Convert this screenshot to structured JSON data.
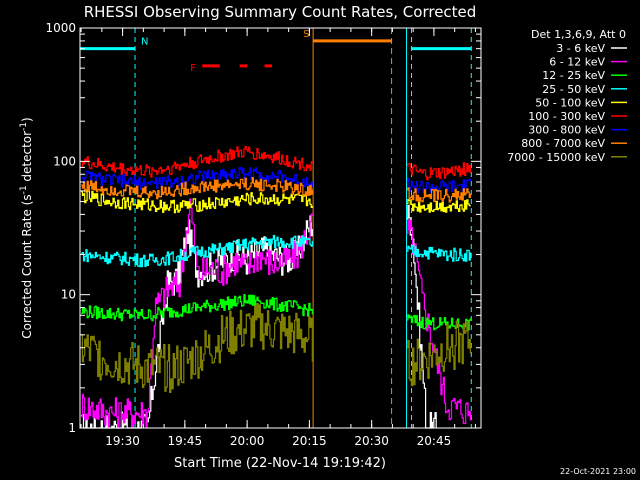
{
  "chart_data": {
    "type": "line",
    "title": "RHESSI Observing Summary Count Rates, Corrected",
    "xlabel": "Start Time (22-Nov-14 19:19:42)",
    "ylabel": "Corrected Count Rate (s⁻¹ detector⁻¹)",
    "ylabel_main": "Corrected Count Rate (s",
    "ylabel_exp1": "-1",
    "ylabel_mid": " detector",
    "ylabel_exp2": "-1",
    "ylabel_close": ")",
    "yscale": "log",
    "xlim": [
      19.329,
      20.939
    ],
    "ylim": [
      1,
      1000
    ],
    "x_ticks": [
      {
        "value": 19.5,
        "label": "19:30"
      },
      {
        "value": 19.75,
        "label": "19:45"
      },
      {
        "value": 20.0,
        "label": "20:00"
      },
      {
        "value": 20.25,
        "label": "20:15"
      },
      {
        "value": 20.5,
        "label": "20:30"
      },
      {
        "value": 20.75,
        "label": "20:45"
      }
    ],
    "y_ticks": [
      {
        "value": 1,
        "label": "1"
      },
      {
        "value": 10,
        "label": "10"
      },
      {
        "value": 100,
        "label": "100"
      },
      {
        "value": 1000,
        "label": "1000"
      }
    ],
    "legend": {
      "header": "Det 1,3,6,9, Att 0",
      "placement": "right"
    },
    "gaps": [
      [
        20.265,
        20.64
      ]
    ],
    "series": [
      {
        "name": "3 - 6 keV",
        "color": "#ffffff",
        "x": [
          19.33,
          19.45,
          19.6,
          19.62,
          19.68,
          19.72,
          19.76,
          19.8,
          19.85,
          19.9,
          19.95,
          20.0,
          20.05,
          20.1,
          20.15,
          20.2,
          20.25,
          20.27,
          20.64,
          20.66,
          20.72,
          20.76
        ],
        "values": [
          1,
          1,
          1,
          2,
          12,
          13,
          30,
          15,
          16,
          18,
          20,
          18,
          22,
          20,
          18,
          20,
          33,
          36,
          40,
          35,
          1,
          1
        ]
      },
      {
        "name": "6 - 12 keV",
        "color": "#ff00ff",
        "x": [
          19.33,
          19.45,
          19.6,
          19.63,
          19.68,
          19.73,
          19.77,
          19.8,
          19.85,
          19.9,
          19.95,
          20.0,
          20.05,
          20.1,
          20.15,
          20.2,
          20.25,
          20.27,
          20.64,
          20.66,
          20.7,
          20.8,
          20.9
        ],
        "values": [
          1.5,
          1.3,
          1.3,
          8,
          11,
          12,
          50,
          14,
          16,
          15,
          18,
          16,
          20,
          17,
          18,
          20,
          32,
          35,
          30,
          28,
          10,
          1.5,
          1.3
        ]
      },
      {
        "name": "12 - 25 keV",
        "color": "#00ff00",
        "x": [
          19.33,
          19.45,
          19.6,
          19.7,
          19.8,
          19.9,
          20.0,
          20.05,
          20.1,
          20.2,
          20.27,
          20.64,
          20.7,
          20.8,
          20.9
        ],
        "values": [
          7.5,
          7.2,
          7.0,
          7.5,
          8.0,
          8.5,
          9.0,
          9.0,
          8.5,
          8.0,
          7.5,
          6.5,
          6.2,
          6.0,
          6.0
        ]
      },
      {
        "name": "25 - 50 keV",
        "color": "#00ffff",
        "x": [
          19.33,
          19.45,
          19.6,
          19.7,
          19.8,
          19.9,
          20.0,
          20.1,
          20.2,
          20.27,
          20.64,
          20.7,
          20.8,
          20.9
        ],
        "values": [
          20,
          19,
          18,
          19,
          21,
          22,
          24,
          25,
          25,
          24,
          21,
          21,
          20,
          20
        ]
      },
      {
        "name": "50 - 100 keV",
        "color": "#ffff00",
        "x": [
          19.33,
          19.45,
          19.6,
          19.7,
          19.8,
          19.9,
          20.0,
          20.1,
          20.2,
          20.27,
          20.64,
          20.7,
          20.8,
          20.9
        ],
        "values": [
          55,
          50,
          47,
          46,
          47,
          49,
          52,
          52,
          51,
          50,
          47,
          46,
          46,
          48
        ]
      },
      {
        "name": "100 - 300 keV",
        "color": "#ff0000",
        "x": [
          19.33,
          19.45,
          19.6,
          19.7,
          19.8,
          19.9,
          20.0,
          20.1,
          20.2,
          20.27,
          20.64,
          20.7,
          20.8,
          20.9
        ],
        "values": [
          100,
          90,
          84,
          90,
          100,
          110,
          118,
          108,
          98,
          92,
          88,
          80,
          82,
          90
        ]
      },
      {
        "name": "300 - 800 keV",
        "color": "#0000ff",
        "x": [
          19.33,
          19.45,
          19.6,
          19.7,
          19.8,
          19.9,
          20.0,
          20.1,
          20.2,
          20.27,
          20.64,
          20.7,
          20.8,
          20.9
        ],
        "values": [
          78,
          72,
          68,
          70,
          76,
          80,
          82,
          78,
          72,
          70,
          67,
          64,
          64,
          66
        ]
      },
      {
        "name": "800 - 7000 keV",
        "color": "#ff8000",
        "x": [
          19.33,
          19.45,
          19.6,
          19.7,
          19.8,
          19.9,
          20.0,
          20.1,
          20.2,
          20.27,
          20.64,
          20.7,
          20.8,
          20.9
        ],
        "values": [
          66,
          62,
          58,
          60,
          64,
          66,
          68,
          66,
          62,
          60,
          57,
          55,
          55,
          57
        ]
      },
      {
        "name": "7000 - 15000 keV",
        "color": "#808000",
        "x": [
          19.33,
          19.45,
          19.6,
          19.7,
          19.75,
          19.8,
          19.85,
          19.9,
          20.0,
          20.05,
          20.1,
          20.2,
          20.27,
          20.64,
          20.7,
          20.8,
          20.9
        ],
        "values": [
          4.0,
          3.2,
          2.8,
          2.8,
          3.0,
          3.5,
          4.0,
          4.8,
          5.5,
          5.8,
          5.4,
          5.0,
          4.5,
          3.0,
          3.2,
          4.0,
          4.5
        ]
      }
    ],
    "intervals": {
      "N": {
        "label": "N",
        "color": "#00ffff",
        "value": 700,
        "segments": [
          [
            19.329,
            19.55
          ],
          [
            20.66,
            20.9
          ]
        ],
        "boundaries": [
          19.55,
          20.66,
          20.9
        ]
      },
      "S": {
        "label": "S",
        "color": "#ff8000",
        "value": 800,
        "segments": [
          [
            20.265,
            20.58
          ]
        ],
        "boundaries": [
          20.265,
          20.58
        ]
      },
      "F": {
        "label": "F",
        "color": "#ff0000",
        "value": 520,
        "segments": [
          [
            19.82,
            19.89
          ],
          [
            19.97,
            20.0
          ],
          [
            20.07,
            20.1
          ]
        ]
      }
    }
  },
  "footer": {
    "timestamp": "22-Oct-2021 23:00"
  }
}
